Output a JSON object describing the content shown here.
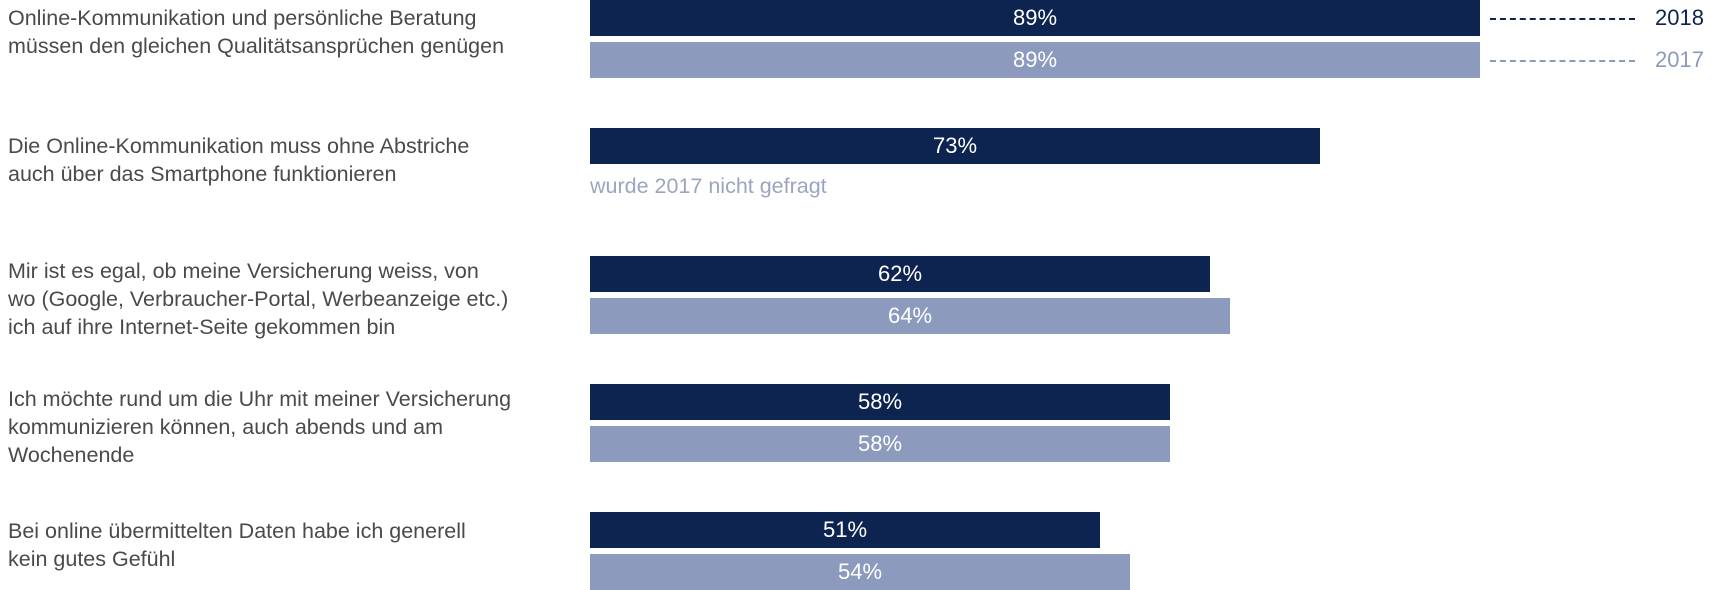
{
  "chart_data": {
    "type": "bar",
    "orientation": "horizontal",
    "title": "",
    "xlabel": "",
    "ylabel": "",
    "xlim": [
      0,
      100
    ],
    "unit": "%",
    "categories": [
      "Online-Kommunikation und persönliche Beratung müssen den gleichen Qualitätsansprüchen genügen",
      "Die Online-Kommunikation muss ohne Abstriche auch über das Smartphone funktionieren",
      "Mir ist es egal, ob meine Versicherung weiss, von wo (Google, Verbraucher-Portal, Werbeanzeige etc.) ich auf ihre Internet-Seite gekommen bin",
      "Ich möchte rund um die Uhr mit meiner Versicherung kommunizieren können, auch abends und am Wochenende",
      "Bei online übermittelten Daten habe ich generell kein gutes Gefühl"
    ],
    "category_lines": [
      [
        "Online-Kommunikation und persönliche Beratung",
        "müssen den gleichen Qualitätsansprüchen genügen"
      ],
      [
        "Die Online-Kommunikation muss ohne Abstriche",
        "auch über das Smartphone funktionieren"
      ],
      [
        "Mir ist es egal, ob meine Versicherung weiss, von",
        "wo (Google, Verbraucher-Portal, Werbeanzeige etc.)",
        "ich auf ihre Internet-Seite gekommen bin"
      ],
      [
        "Ich möchte rund um die Uhr mit meiner Versicherung",
        "kommunizieren können, auch abends und am",
        "Wochenende"
      ],
      [
        "Bei online übermittelten Daten habe ich generell",
        "kein gutes Gefühl"
      ]
    ],
    "series": [
      {
        "name": "2018",
        "color": "#0d2451",
        "values": [
          89,
          73,
          62,
          58,
          51
        ]
      },
      {
        "name": "2017",
        "color": "#8c9abd",
        "values": [
          89,
          null,
          64,
          58,
          54
        ]
      }
    ],
    "value_labels": [
      [
        "89%",
        "73%",
        "62%",
        "58%",
        "51%"
      ],
      [
        "89%",
        "",
        "64%",
        "58%",
        "54%"
      ]
    ],
    "annotations": [
      {
        "category_index": 1,
        "series_index": 1,
        "text": "wurde 2017 nicht gefragt"
      }
    ],
    "legend": {
      "placement": "top-right",
      "style": "dashed-line"
    },
    "grid": false
  }
}
